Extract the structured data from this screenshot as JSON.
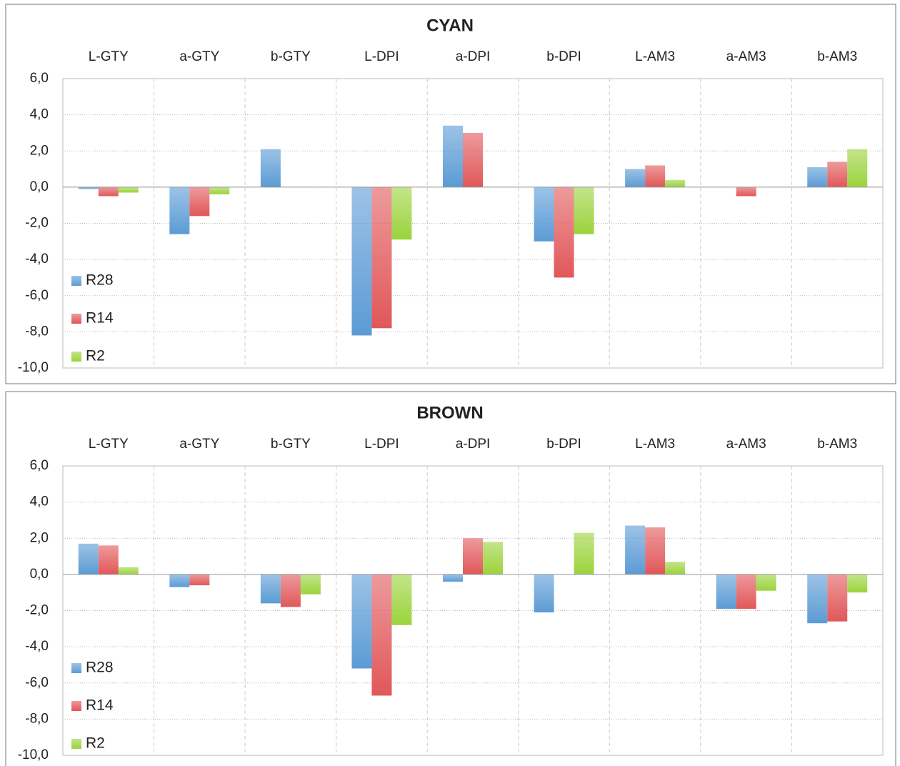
{
  "chart_data": [
    {
      "type": "bar",
      "title": "CYAN",
      "categories": [
        "L-GTY",
        "a-GTY",
        "b-GTY",
        "L-DPI",
        "a-DPI",
        "b-DPI",
        "L-AM3",
        "a-AM3",
        "b-AM3"
      ],
      "series": [
        {
          "name": "R28",
          "color": "#5b9bd5",
          "values": [
            -0.1,
            -2.6,
            2.1,
            -8.2,
            3.4,
            -3.0,
            1.0,
            0,
            1.1
          ]
        },
        {
          "name": "R14",
          "color": "#e15759",
          "values": [
            -0.5,
            -1.6,
            0,
            -7.8,
            3.0,
            -5.0,
            1.2,
            -0.5,
            1.4
          ]
        },
        {
          "name": "R2",
          "color": "#9bd33c",
          "values": [
            -0.3,
            -0.4,
            0,
            -2.9,
            0,
            -2.6,
            0.4,
            0,
            2.1
          ]
        }
      ],
      "ylim": [
        -10,
        6
      ],
      "yticks": [
        {
          "value": -10,
          "label": "-10,0"
        },
        {
          "value": -8,
          "label": "-8,0"
        },
        {
          "value": -6,
          "label": "-6,0"
        },
        {
          "value": -4,
          "label": "-4,0"
        },
        {
          "value": -2,
          "label": "-2,0"
        },
        {
          "value": 0,
          "label": "0,0"
        },
        {
          "value": 2,
          "label": "2,0"
        },
        {
          "value": 4,
          "label": "4,0"
        },
        {
          "value": 6,
          "label": "6,0"
        }
      ],
      "grid": true,
      "legend": "left"
    },
    {
      "type": "bar",
      "title": "BROWN",
      "categories": [
        "L-GTY",
        "a-GTY",
        "b-GTY",
        "L-DPI",
        "a-DPI",
        "b-DPI",
        "L-AM3",
        "a-AM3",
        "b-AM3"
      ],
      "series": [
        {
          "name": "R28",
          "color": "#5b9bd5",
          "values": [
            1.7,
            -0.7,
            -1.6,
            -5.2,
            -0.4,
            -2.1,
            2.7,
            -1.9,
            -2.7
          ]
        },
        {
          "name": "R14",
          "color": "#e15759",
          "values": [
            1.6,
            -0.6,
            -1.8,
            -6.7,
            2.0,
            0,
            2.6,
            -1.9,
            -2.6
          ]
        },
        {
          "name": "R2",
          "color": "#9bd33c",
          "values": [
            0.4,
            0,
            -1.1,
            -2.8,
            1.8,
            2.3,
            0.7,
            -0.9,
            -1.0
          ]
        }
      ],
      "ylim": [
        -10,
        6
      ],
      "yticks": [
        {
          "value": -10,
          "label": "-10,0"
        },
        {
          "value": -8,
          "label": "-8,0"
        },
        {
          "value": -6,
          "label": "-6,0"
        },
        {
          "value": -4,
          "label": "-4,0"
        },
        {
          "value": -2,
          "label": "-2,0"
        },
        {
          "value": 0,
          "label": "0,0"
        },
        {
          "value": 2,
          "label": "2,0"
        },
        {
          "value": 4,
          "label": "4,0"
        },
        {
          "value": 6,
          "label": "6,0"
        }
      ],
      "grid": true,
      "legend": "left"
    }
  ]
}
